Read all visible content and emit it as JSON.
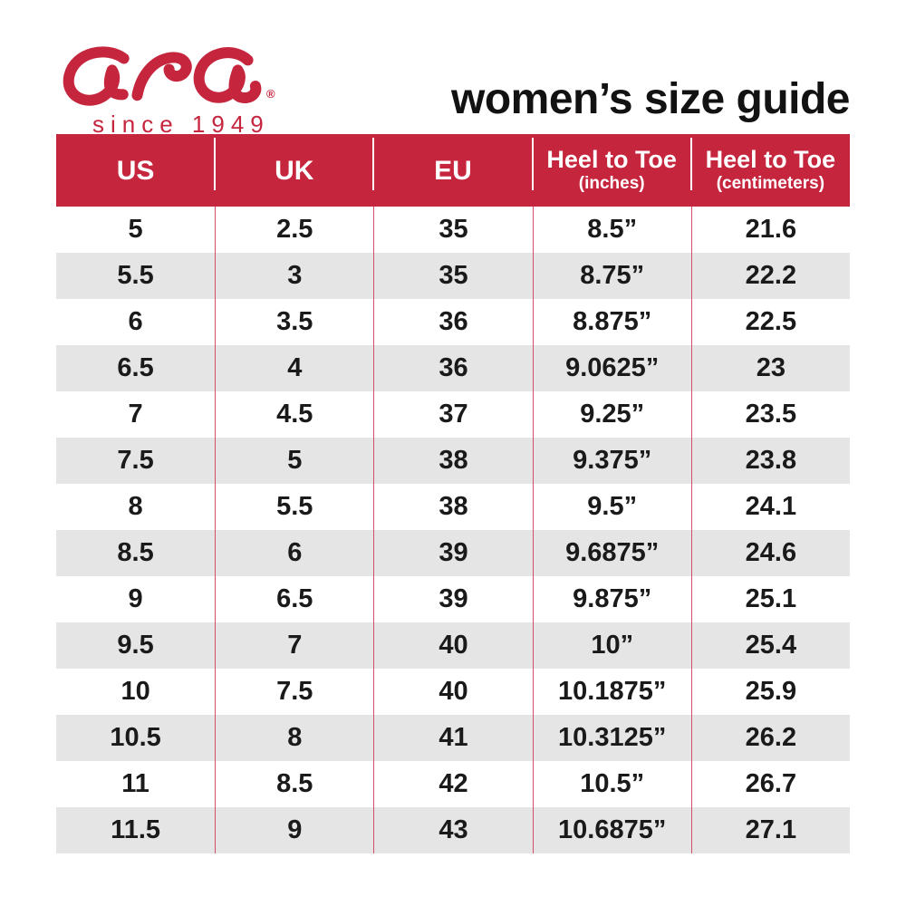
{
  "brand": {
    "logo_text": "ara",
    "registered_mark": "®",
    "tagline": "since 1949"
  },
  "page_title": "women’s size guide",
  "chart_data": {
    "type": "table",
    "title": "women’s size guide",
    "columns": [
      {
        "label": "US",
        "sublabel": ""
      },
      {
        "label": "UK",
        "sublabel": ""
      },
      {
        "label": "EU",
        "sublabel": ""
      },
      {
        "label": "Heel to Toe",
        "sublabel": "(inches)"
      },
      {
        "label": "Heel to Toe",
        "sublabel": "(centimeters)"
      }
    ],
    "rows": [
      [
        "5",
        "2.5",
        "35",
        "8.5”",
        "21.6"
      ],
      [
        "5.5",
        "3",
        "35",
        "8.75”",
        "22.2"
      ],
      [
        "6",
        "3.5",
        "36",
        "8.875”",
        "22.5"
      ],
      [
        "6.5",
        "4",
        "36",
        "9.0625”",
        "23"
      ],
      [
        "7",
        "4.5",
        "37",
        "9.25”",
        "23.5"
      ],
      [
        "7.5",
        "5",
        "38",
        "9.375”",
        "23.8"
      ],
      [
        "8",
        "5.5",
        "38",
        "9.5”",
        "24.1"
      ],
      [
        "8.5",
        "6",
        "39",
        "9.6875”",
        "24.6"
      ],
      [
        "9",
        "6.5",
        "39",
        "9.875”",
        "25.1"
      ],
      [
        "9.5",
        "7",
        "40",
        "10”",
        "25.4"
      ],
      [
        "10",
        "7.5",
        "40",
        "10.1875”",
        "25.9"
      ],
      [
        "10.5",
        "8",
        "41",
        "10.3125”",
        "26.2"
      ],
      [
        "11",
        "8.5",
        "42",
        "10.5”",
        "26.7"
      ],
      [
        "11.5",
        "9",
        "43",
        "10.6875”",
        "27.1"
      ]
    ]
  },
  "colors": {
    "brand_red": "#C6253E",
    "header_bg": "#C6253E",
    "header_text": "#FFFFFF",
    "header_divider": "#FFFFFF",
    "row_bg": "#FFFFFF",
    "row_alt_bg": "#E5E5E5",
    "cell_text": "#1A1A1A",
    "body_divider": "#D25066"
  }
}
